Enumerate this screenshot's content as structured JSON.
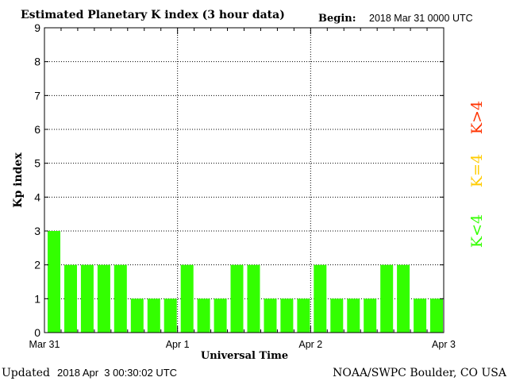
{
  "header": {
    "title": "Estimated Planetary K index (3 hour data)",
    "begin_label": "Begin:",
    "begin_value": "2018 Mar 31 0000 UTC"
  },
  "footer": {
    "updated_label": "Updated",
    "updated_value": "2018 Apr  3 00:30:02 UTC",
    "source": "NOAA/SWPC Boulder, CO USA"
  },
  "legend": {
    "storm": "K>4",
    "active": "K=4",
    "quiet": "K<4"
  },
  "colors": {
    "bar": "#33ff00",
    "storm": "#ff3300",
    "active": "#ffcc00",
    "quiet": "#33ff00",
    "frame": "#000000"
  },
  "chart_data": {
    "type": "bar",
    "title": "Estimated Planetary K index (3 hour data)",
    "xlabel": "Universal Time",
    "ylabel": "Kp index",
    "ylim": [
      0,
      9
    ],
    "yticks": [
      0,
      1,
      2,
      3,
      4,
      5,
      6,
      7,
      8,
      9
    ],
    "xtick_labels": [
      "Mar 31",
      "Apr 1",
      "Apr 2",
      "Apr 3"
    ],
    "grid": true,
    "legend_position": "right",
    "series": [
      {
        "values": [
          3,
          2,
          2,
          2,
          2,
          1,
          1,
          1,
          2,
          1,
          1,
          2,
          2,
          1,
          1,
          1,
          2,
          1,
          1,
          1,
          2,
          2,
          1,
          1
        ]
      }
    ]
  }
}
